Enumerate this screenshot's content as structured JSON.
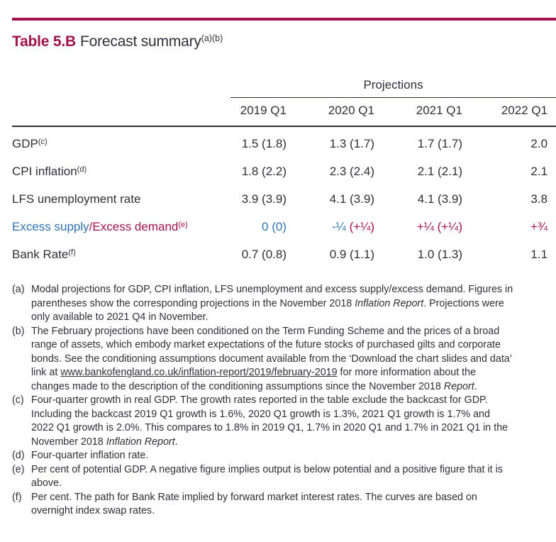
{
  "colors": {
    "crimson": "#A1124A",
    "blue": "#2E74B5",
    "ink": "#2F2F38"
  },
  "title": {
    "prefix": "Table 5.B",
    "main": "Forecast summary",
    "superscript": "(a)(b)"
  },
  "table": {
    "group_header": "Projections",
    "columns": [
      "2019 Q1",
      "2020 Q1",
      "2021 Q1",
      "2022 Q1"
    ],
    "rows": [
      {
        "label": [
          {
            "t": "GDP"
          },
          {
            "t": "(c)",
            "sup": true
          }
        ],
        "values": [
          [
            {
              "t": "1.5 (1.8)"
            }
          ],
          [
            {
              "t": "1.3 (1.7)"
            }
          ],
          [
            {
              "t": "1.7 (1.7)"
            }
          ],
          [
            {
              "t": "2.0"
            }
          ]
        ]
      },
      {
        "label": [
          {
            "t": "CPI inflation"
          },
          {
            "t": "(d)",
            "sup": true
          }
        ],
        "values": [
          [
            {
              "t": "1.8 (2.2)"
            }
          ],
          [
            {
              "t": "2.3 (2.4)"
            }
          ],
          [
            {
              "t": "2.1 (2.1)"
            }
          ],
          [
            {
              "t": "2.1"
            }
          ]
        ]
      },
      {
        "label": [
          {
            "t": "LFS unemployment rate"
          }
        ],
        "values": [
          [
            {
              "t": "3.9 (3.9)"
            }
          ],
          [
            {
              "t": "4.1 (3.9)"
            }
          ],
          [
            {
              "t": "4.1 (3.9)"
            }
          ],
          [
            {
              "t": "3.8"
            }
          ]
        ]
      },
      {
        "label": [
          {
            "t": "Excess supply",
            "c": "blue"
          },
          {
            "t": "/",
            "c": "crimson"
          },
          {
            "t": "Excess demand",
            "c": "crimson"
          },
          {
            "t": "(e)",
            "sup": true,
            "c": "crimson"
          }
        ],
        "values": [
          [
            {
              "t": "0 (0)",
              "c": "blue"
            }
          ],
          [
            {
              "t": "-¼ ",
              "c": "blue"
            },
            {
              "t": "(+¼)",
              "c": "crimson"
            }
          ],
          [
            {
              "t": "+¼ (+¼)",
              "c": "crimson"
            }
          ],
          [
            {
              "t": "+¾",
              "c": "crimson"
            }
          ]
        ]
      },
      {
        "label": [
          {
            "t": "Bank Rate"
          },
          {
            "t": "(f)",
            "sup": true
          }
        ],
        "values": [
          [
            {
              "t": "0.7 (0.8)"
            }
          ],
          [
            {
              "t": "0.9 (1.1)"
            }
          ],
          [
            {
              "t": "1.0 (1.3)"
            }
          ],
          [
            {
              "t": "1.1"
            }
          ]
        ]
      }
    ]
  },
  "footnotes": [
    {
      "label": "(a)",
      "lines": [
        [
          {
            "t": "Modal projections for GDP, CPI inflation, LFS unemployment and excess supply/excess demand. Figures in"
          }
        ],
        [
          {
            "t": "parentheses show the corresponding projections in the November 2018 "
          },
          {
            "t": "Inflation Report",
            "i": true
          },
          {
            "t": ". Projections were"
          }
        ],
        [
          {
            "t": "only available to 2021 Q4 in November."
          }
        ]
      ]
    },
    {
      "label": "(b)",
      "lines": [
        [
          {
            "t": "The February projections have been conditioned on the Term Funding Scheme and the prices of a broad"
          }
        ],
        [
          {
            "t": "range of assets, which embody market expectations of the future stocks of purchased gilts and corporate"
          }
        ],
        [
          {
            "t": "bonds. See the conditioning assumptions document available from the ‘Download the chart slides and data’"
          }
        ],
        [
          {
            "t": "link at "
          },
          {
            "t": "www.bankofengland.co.uk/inflation-report/2019/february-2019",
            "u": true
          },
          {
            "t": " for more information about the"
          }
        ],
        [
          {
            "t": "changes made to the description of the conditioning assumptions since the November 2018 "
          },
          {
            "t": "Report",
            "i": true
          },
          {
            "t": "."
          }
        ]
      ]
    },
    {
      "label": "(c)",
      "lines": [
        [
          {
            "t": "Four-quarter growth in real GDP. The growth rates reported in the table exclude the backcast for GDP."
          }
        ],
        [
          {
            "t": "Including the backcast 2019 Q1 growth is 1.6%, 2020 Q1 growth is 1.3%, 2021 Q1 growth is 1.7% and"
          }
        ],
        [
          {
            "t": "2022 Q1 growth is 2.0%. This compares to 1.8% in 2019 Q1, 1.7% in 2020 Q1 and 1.7% in 2021 Q1 in the"
          }
        ],
        [
          {
            "t": "November 2018 "
          },
          {
            "t": "Inflation Report",
            "i": true
          },
          {
            "t": "."
          }
        ]
      ]
    },
    {
      "label": "(d)",
      "lines": [
        [
          {
            "t": "Four-quarter inflation rate."
          }
        ]
      ]
    },
    {
      "label": "(e)",
      "lines": [
        [
          {
            "t": "Per cent of potential GDP. A negative figure implies output is below potential and a positive figure that it is"
          }
        ],
        [
          {
            "t": "above."
          }
        ]
      ]
    },
    {
      "label": "(f)",
      "lines": [
        [
          {
            "t": "Per cent. The path for Bank Rate implied by forward market interest rates. The curves are based on"
          }
        ],
        [
          {
            "t": "overnight index swap rates."
          }
        ]
      ]
    }
  ]
}
